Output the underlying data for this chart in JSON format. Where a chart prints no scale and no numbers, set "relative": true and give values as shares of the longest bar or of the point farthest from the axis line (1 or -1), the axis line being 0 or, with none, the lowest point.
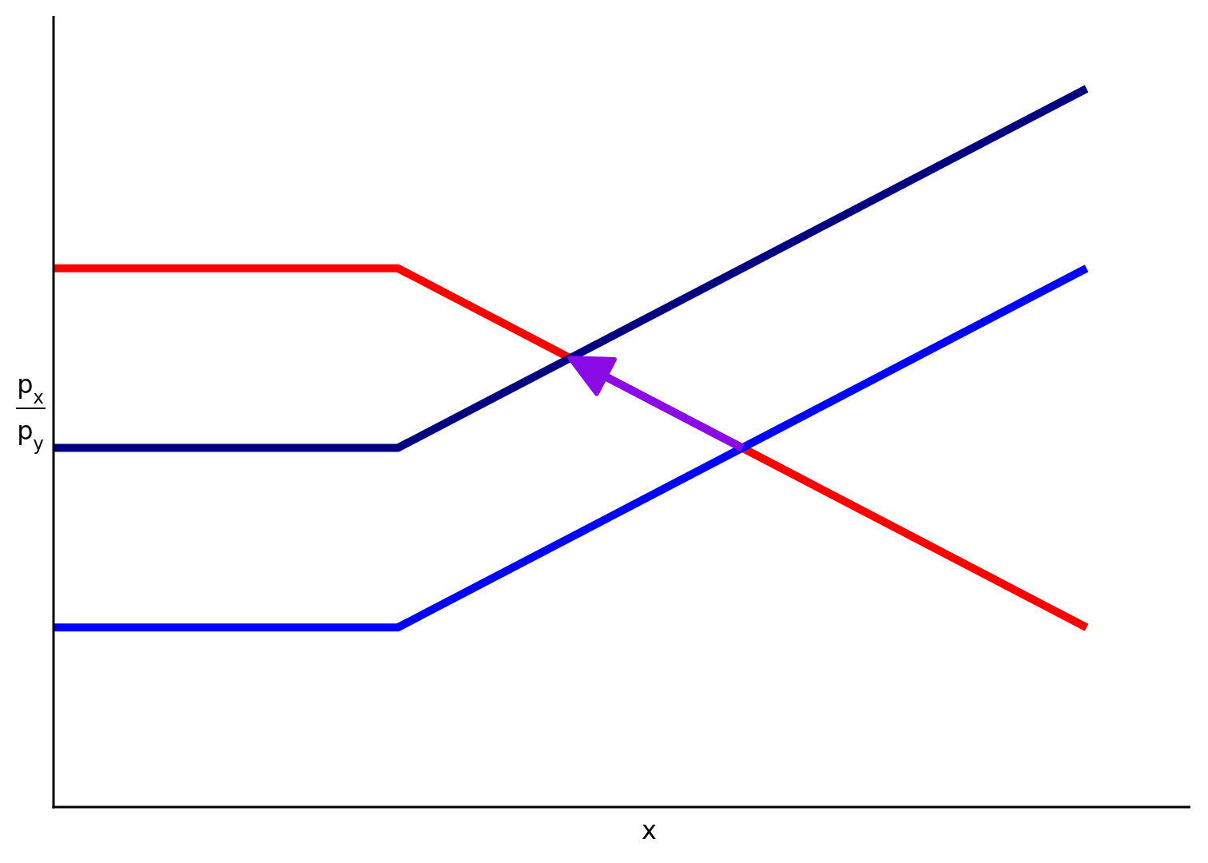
{
  "chart_data": {
    "type": "line",
    "relative": true,
    "xlabel": "x",
    "ylabel": "p$_{x}$\np$_{y}$",
    "categories": [
      null,
      null,
      null,
      null
    ],
    "series": [
      {
        "color": "#ff0000",
        "values": [
          0.75,
          0.75,
          0.5,
          0.25
        ]
      },
      {
        "color": "#000080",
        "values": [
          0.5,
          0.5,
          0.75,
          1
        ]
      },
      {
        "color": "#0000ff",
        "values": [
          0.25,
          0.25,
          0.5,
          0.75
        ]
      }
    ],
    "line_style": "solid"
  }
}
